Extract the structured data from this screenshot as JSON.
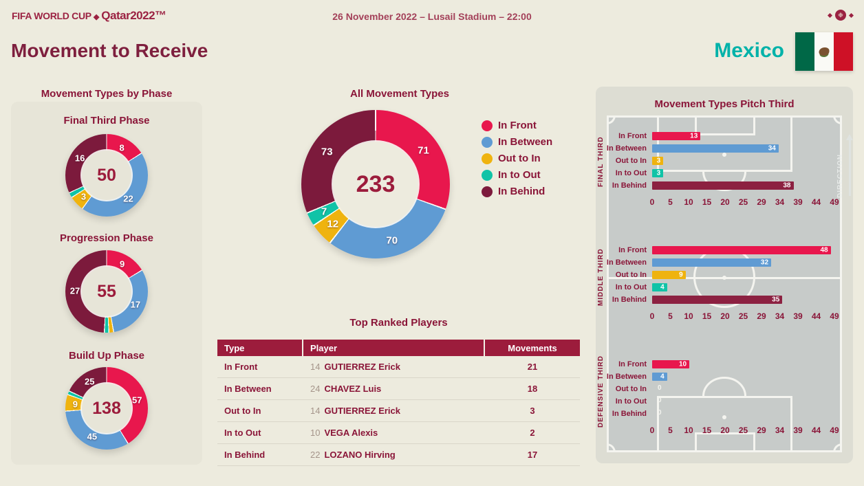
{
  "header": {
    "logo_fifa": "FIFA WORLD CUP",
    "logo_separator": "◆",
    "logo_qatar": "Qatar2022™",
    "match_info": "26 November 2022 – Lusail Stadium – 22:00",
    "emblem_glyph": "❉"
  },
  "page_title": "Movement to Receive",
  "team": {
    "name": "Mexico"
  },
  "colors": {
    "in_front": "#E8174D",
    "in_between": "#5F9BD3",
    "out_to_in": "#EFB30F",
    "in_to_out": "#10C3A7",
    "in_behind": "#7C1A3C",
    "in_behind_bar": "#8C2141",
    "maroon_text": "#8A1538",
    "table_header_bg": "#9C1C3C",
    "team_accent": "#00B2A9",
    "page_bg": "#EDEBDE",
    "left_panel_bg": "#E7E5D8",
    "right_panel_bg": "#DDDDD3",
    "pitch_bg": "#C7CBC9"
  },
  "sections": {
    "phase_title": "Movement Types by Phase",
    "all_title": "All Movement Types",
    "table_title": "Top Ranked Players",
    "pitch_title": "Movement Types Pitch Third",
    "direction_label": "DIRECTION"
  },
  "legend": {
    "items": [
      {
        "key": "in_front",
        "label": "In Front"
      },
      {
        "key": "in_between",
        "label": "In Between"
      },
      {
        "key": "out_to_in",
        "label": "Out to In"
      },
      {
        "key": "in_to_out",
        "label": "In to Out"
      },
      {
        "key": "in_behind",
        "label": "In Behind"
      }
    ]
  },
  "chart_data": [
    {
      "id": "donut-final-third",
      "type": "pie",
      "title": "Final Third Phase",
      "total": 50,
      "slices": [
        {
          "label": "In Front",
          "value": 8,
          "key": "in_front",
          "show_label": true
        },
        {
          "label": "In Between",
          "value": 22,
          "key": "in_between",
          "show_label": true
        },
        {
          "label": "Out to In",
          "value": 3,
          "key": "out_to_in",
          "show_label": true
        },
        {
          "label": "In to Out",
          "value": 1,
          "key": "in_to_out",
          "show_label": false
        },
        {
          "label": "In Behind",
          "value": 16,
          "key": "in_behind",
          "show_label": true
        }
      ]
    },
    {
      "id": "donut-progression",
      "type": "pie",
      "title": "Progression Phase",
      "total": 55,
      "slices": [
        {
          "label": "In Front",
          "value": 9,
          "key": "in_front",
          "show_label": true
        },
        {
          "label": "In Between",
          "value": 17,
          "key": "in_between",
          "show_label": true
        },
        {
          "label": "Out to In",
          "value": 1,
          "key": "out_to_in",
          "show_label": false
        },
        {
          "label": "In to Out",
          "value": 1,
          "key": "in_to_out",
          "show_label": false
        },
        {
          "label": "In Behind",
          "value": 27,
          "key": "in_behind",
          "show_label": true
        }
      ]
    },
    {
      "id": "donut-buildup",
      "type": "pie",
      "title": "Build Up Phase",
      "total": 138,
      "slices": [
        {
          "label": "In Front",
          "value": 57,
          "key": "in_front",
          "show_label": true
        },
        {
          "label": "In Between",
          "value": 45,
          "key": "in_between",
          "show_label": true
        },
        {
          "label": "Out to In",
          "value": 9,
          "key": "out_to_in",
          "show_label": true
        },
        {
          "label": "In to Out",
          "value": 2,
          "key": "in_to_out",
          "show_label": false
        },
        {
          "label": "In Behind",
          "value": 25,
          "key": "in_behind",
          "show_label": true
        }
      ]
    },
    {
      "id": "donut-all",
      "type": "pie",
      "title": "All Movement Types",
      "total": 233,
      "slices": [
        {
          "label": "In Front",
          "value": 71,
          "key": "in_front",
          "show_label": true
        },
        {
          "label": "In Between",
          "value": 70,
          "key": "in_between",
          "show_label": true
        },
        {
          "label": "Out to In",
          "value": 12,
          "key": "out_to_in",
          "show_label": true
        },
        {
          "label": "In to Out",
          "value": 7,
          "key": "in_to_out",
          "show_label": true
        },
        {
          "label": "In Behind",
          "value": 73,
          "key": "in_behind",
          "show_label": true
        }
      ]
    },
    {
      "id": "bars-final-third",
      "type": "bar",
      "section_label": "FINAL THIRD",
      "categories": [
        "In Front",
        "In Between",
        "Out to In",
        "In to Out",
        "In Behind"
      ],
      "keys": [
        "in_front",
        "in_between",
        "out_to_in",
        "in_to_out",
        "in_behind_bar"
      ],
      "values": [
        13,
        34,
        3,
        3,
        38
      ],
      "x_ticks": [
        "0",
        "5",
        "10",
        "15",
        "20",
        "25",
        "29",
        "34",
        "39",
        "44",
        "49"
      ],
      "xlim": [
        0,
        49
      ]
    },
    {
      "id": "bars-middle-third",
      "type": "bar",
      "section_label": "MIDDLE THIRD",
      "categories": [
        "In Front",
        "In Between",
        "Out to In",
        "In to Out",
        "In Behind"
      ],
      "keys": [
        "in_front",
        "in_between",
        "out_to_in",
        "in_to_out",
        "in_behind_bar"
      ],
      "values": [
        48,
        32,
        9,
        4,
        35
      ],
      "x_ticks": [
        "0",
        "5",
        "10",
        "15",
        "20",
        "25",
        "29",
        "34",
        "39",
        "44",
        "49"
      ],
      "xlim": [
        0,
        49
      ]
    },
    {
      "id": "bars-defensive-third",
      "type": "bar",
      "section_label": "DEFENSIVE THIRD",
      "categories": [
        "In Front",
        "In Between",
        "Out to In",
        "In to Out",
        "In Behind"
      ],
      "keys": [
        "in_front",
        "in_between",
        "out_to_in",
        "in_to_out",
        "in_behind_bar"
      ],
      "values": [
        10,
        4,
        0,
        0,
        0
      ],
      "x_ticks": [
        "0",
        "5",
        "10",
        "15",
        "20",
        "25",
        "29",
        "34",
        "39",
        "44",
        "49"
      ],
      "xlim": [
        0,
        49
      ]
    }
  ],
  "table": {
    "headers": [
      "Type",
      "Player",
      "Movements"
    ],
    "rows": [
      {
        "type": "In Front",
        "player_number": "14",
        "player_name": "GUTIERREZ Erick",
        "movements": "21"
      },
      {
        "type": "In Between",
        "player_number": "24",
        "player_name": "CHAVEZ Luis",
        "movements": "18"
      },
      {
        "type": "Out to In",
        "player_number": "14",
        "player_name": "GUTIERREZ Erick",
        "movements": "3"
      },
      {
        "type": "In to Out",
        "player_number": "10",
        "player_name": "VEGA Alexis",
        "movements": "2"
      },
      {
        "type": "In Behind",
        "player_number": "22",
        "player_name": "LOZANO Hirving",
        "movements": "17"
      }
    ]
  }
}
